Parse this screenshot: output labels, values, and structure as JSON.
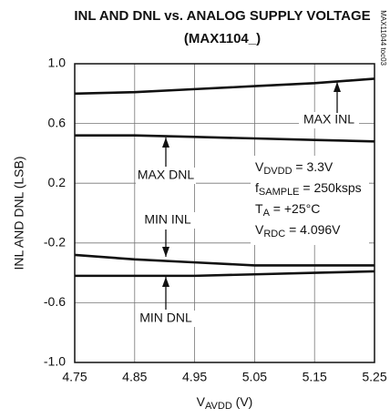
{
  "chart_data": {
    "type": "line",
    "title": "INL AND DNL vs. ANALOG SUPPLY VOLTAGE",
    "subtitle": "(MAX1104_)",
    "side_note": "MAX11044 toc03",
    "ylabel": "INL AND DNL (LSB)",
    "xlabel": {
      "base": "V",
      "sub": "AVDD",
      "rest": " (V)"
    },
    "x": [
      4.75,
      4.85,
      4.95,
      5.05,
      5.15,
      5.25
    ],
    "xlim": [
      4.75,
      5.25
    ],
    "xticks": [
      4.75,
      4.85,
      4.95,
      5.05,
      5.15,
      5.25
    ],
    "ylim": [
      -1.0,
      1.0
    ],
    "yticks": [
      {
        "value": -1.0,
        "label": "-1.0"
      },
      -0.6,
      -0.2,
      0.2,
      0.6,
      {
        "value": 1.0,
        "label": "1.0"
      }
    ],
    "grid": true,
    "series": [
      {
        "name": "MAX INL",
        "color": "#111111",
        "values": [
          0.8,
          0.81,
          0.83,
          0.85,
          0.87,
          0.9
        ]
      },
      {
        "name": "MAX DNL",
        "color": "#111111",
        "values": [
          0.52,
          0.52,
          0.51,
          0.5,
          0.49,
          0.48
        ]
      },
      {
        "name": "MIN INL",
        "color": "#111111",
        "values": [
          -0.28,
          -0.31,
          -0.33,
          -0.35,
          -0.35,
          -0.35
        ]
      },
      {
        "name": "MIN DNL",
        "color": "#111111",
        "values": [
          -0.42,
          -0.42,
          -0.42,
          -0.41,
          -0.4,
          -0.39
        ]
      }
    ],
    "conditions": [
      {
        "base": "V",
        "sub": "DVDD",
        "rest": " = 3.3V"
      },
      {
        "base": "f",
        "sub": "SAMPLE",
        "rest": " = 250ksps"
      },
      {
        "base": "T",
        "sub": "A",
        "rest": " = +25°C"
      },
      {
        "base": "V",
        "sub": "RDC",
        "rest": " = 4.096V"
      }
    ]
  }
}
